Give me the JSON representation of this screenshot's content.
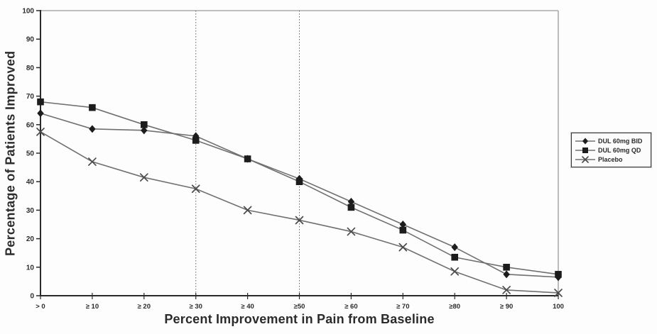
{
  "chart_data": {
    "type": "line",
    "title": "",
    "xlabel": "Percent Improvement in Pain from Baseline",
    "ylabel": "Percentage of Patients Improved",
    "categories": [
      "> 0",
      "≥ 10",
      "≥ 20",
      "≥ 30",
      "≥ 40",
      "≥50",
      "≥ 60",
      "≥ 70",
      "≥80",
      "≥ 90",
      "100"
    ],
    "series": [
      {
        "name": "DUL 60mg BID",
        "marker": "diamond",
        "values": [
          64,
          58.5,
          58,
          56,
          48,
          41,
          33,
          25,
          17,
          7.5,
          6.5
        ]
      },
      {
        "name": "DUL 60mg QD",
        "marker": "square",
        "values": [
          68,
          66,
          60,
          54.5,
          48,
          40,
          31,
          23,
          13.5,
          10,
          7.5
        ]
      },
      {
        "name": "Placebo",
        "marker": "x",
        "values": [
          57.5,
          47,
          41.5,
          37.5,
          30,
          26.5,
          22.5,
          17,
          8.5,
          2,
          1
        ]
      }
    ],
    "ylim": [
      0,
      100
    ],
    "y_ticks": [
      0,
      10,
      20,
      30,
      40,
      50,
      60,
      70,
      80,
      90,
      100
    ],
    "reference_line_category_indices": [
      3,
      5
    ],
    "grid": false,
    "legend_position": "right-outside",
    "colors": {
      "series_line": "#707070",
      "marker": "#1c1c1c",
      "placebo_marker": "#4a4a4a",
      "reference_line": "#666666",
      "axis": "#2a2a2a",
      "plot_border": "#9a9a9a",
      "text": "#2b2b2b"
    }
  }
}
